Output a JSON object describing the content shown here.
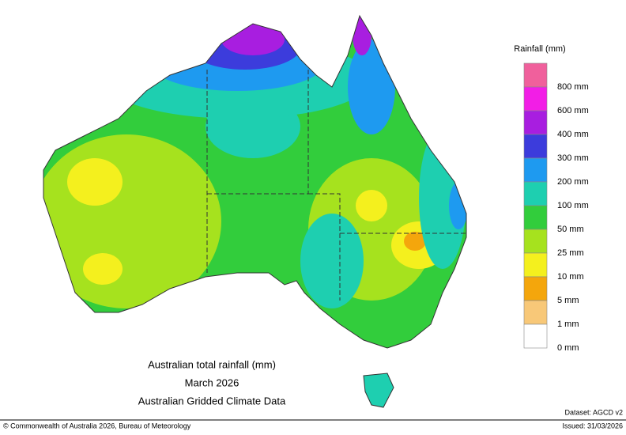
{
  "map": {
    "title_lines": [
      "Australian total rainfall (mm)",
      "March 2026",
      "Australian Gridded Climate Data"
    ]
  },
  "legend": {
    "title": "Rainfall (mm)",
    "colors": [
      "#f0609c",
      "#f21ee6",
      "#a81ee0",
      "#3c3cdc",
      "#1e9af0",
      "#1ecfb0",
      "#32cd3c",
      "#a6e21e",
      "#f4f01e",
      "#f4a60c",
      "#f8c878",
      "#ffffff"
    ],
    "labels": [
      "800 mm",
      "600 mm",
      "400 mm",
      "300 mm",
      "200 mm",
      "100 mm",
      "50 mm",
      "25 mm",
      "10 mm",
      "5 mm",
      "1 mm",
      "0 mm"
    ]
  },
  "footer": {
    "copyright": "© Commonwealth of Australia 2026, Bureau of Meteorology",
    "dataset": "Dataset: AGCD v2",
    "issued": "Issued: 31/03/2026"
  }
}
